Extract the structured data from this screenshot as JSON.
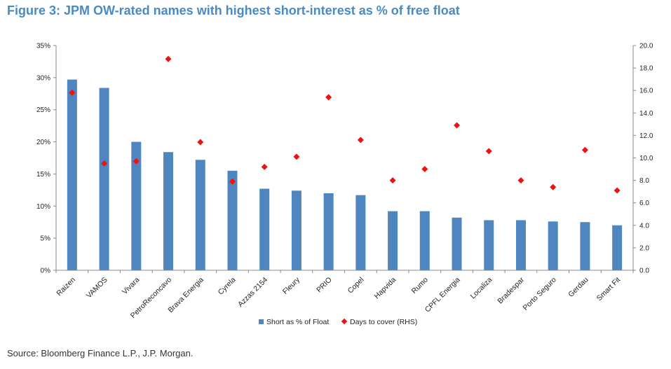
{
  "title": "Figure 3: JPM OW-rated names with highest short-interest as % of free float",
  "source": "Source: Bloomberg Finance L.P., J.P. Morgan.",
  "colors": {
    "bar": "#4f86c0",
    "marker": "#ee1111",
    "title": "#4a8ac4",
    "axis": "#888888"
  },
  "chart_data": {
    "type": "bar",
    "categories": [
      "Raizen",
      "VAMOS",
      "Vivara",
      "PetroReconcavo",
      "Brava Energia",
      "Cyrela",
      "Azzas 2154",
      "Fleury",
      "PRIO",
      "Copel",
      "Hapvida",
      "Rumo",
      "CPFL Energia",
      "Localiza",
      "Bradespar",
      "Porto Seguro",
      "Gerdau",
      "Smart Fit"
    ],
    "series": [
      {
        "name": "Short as % of Float",
        "type": "bar",
        "axis": "left",
        "values": [
          29.7,
          28.4,
          20.0,
          18.4,
          17.2,
          15.5,
          12.7,
          12.4,
          12.0,
          11.7,
          9.2,
          9.2,
          8.2,
          7.8,
          7.8,
          7.6,
          7.5,
          7.0
        ]
      },
      {
        "name": "Days to cover (RHS)",
        "type": "scatter",
        "axis": "right",
        "values": [
          15.8,
          9.5,
          9.7,
          18.8,
          11.4,
          7.9,
          9.2,
          10.1,
          15.4,
          11.6,
          8.0,
          9.0,
          12.9,
          10.6,
          8.0,
          7.4,
          10.7,
          7.1
        ]
      }
    ],
    "ylim_left": [
      0,
      35
    ],
    "ylim_right": [
      0,
      20
    ],
    "left_ticks": [
      "0%",
      "5%",
      "10%",
      "15%",
      "20%",
      "25%",
      "30%",
      "35%"
    ],
    "right_ticks": [
      "0.0",
      "2.0",
      "4.0",
      "6.0",
      "8.0",
      "10.0",
      "12.0",
      "14.0",
      "16.0",
      "18.0",
      "20.0"
    ],
    "grid": false,
    "legend": "bottom"
  }
}
